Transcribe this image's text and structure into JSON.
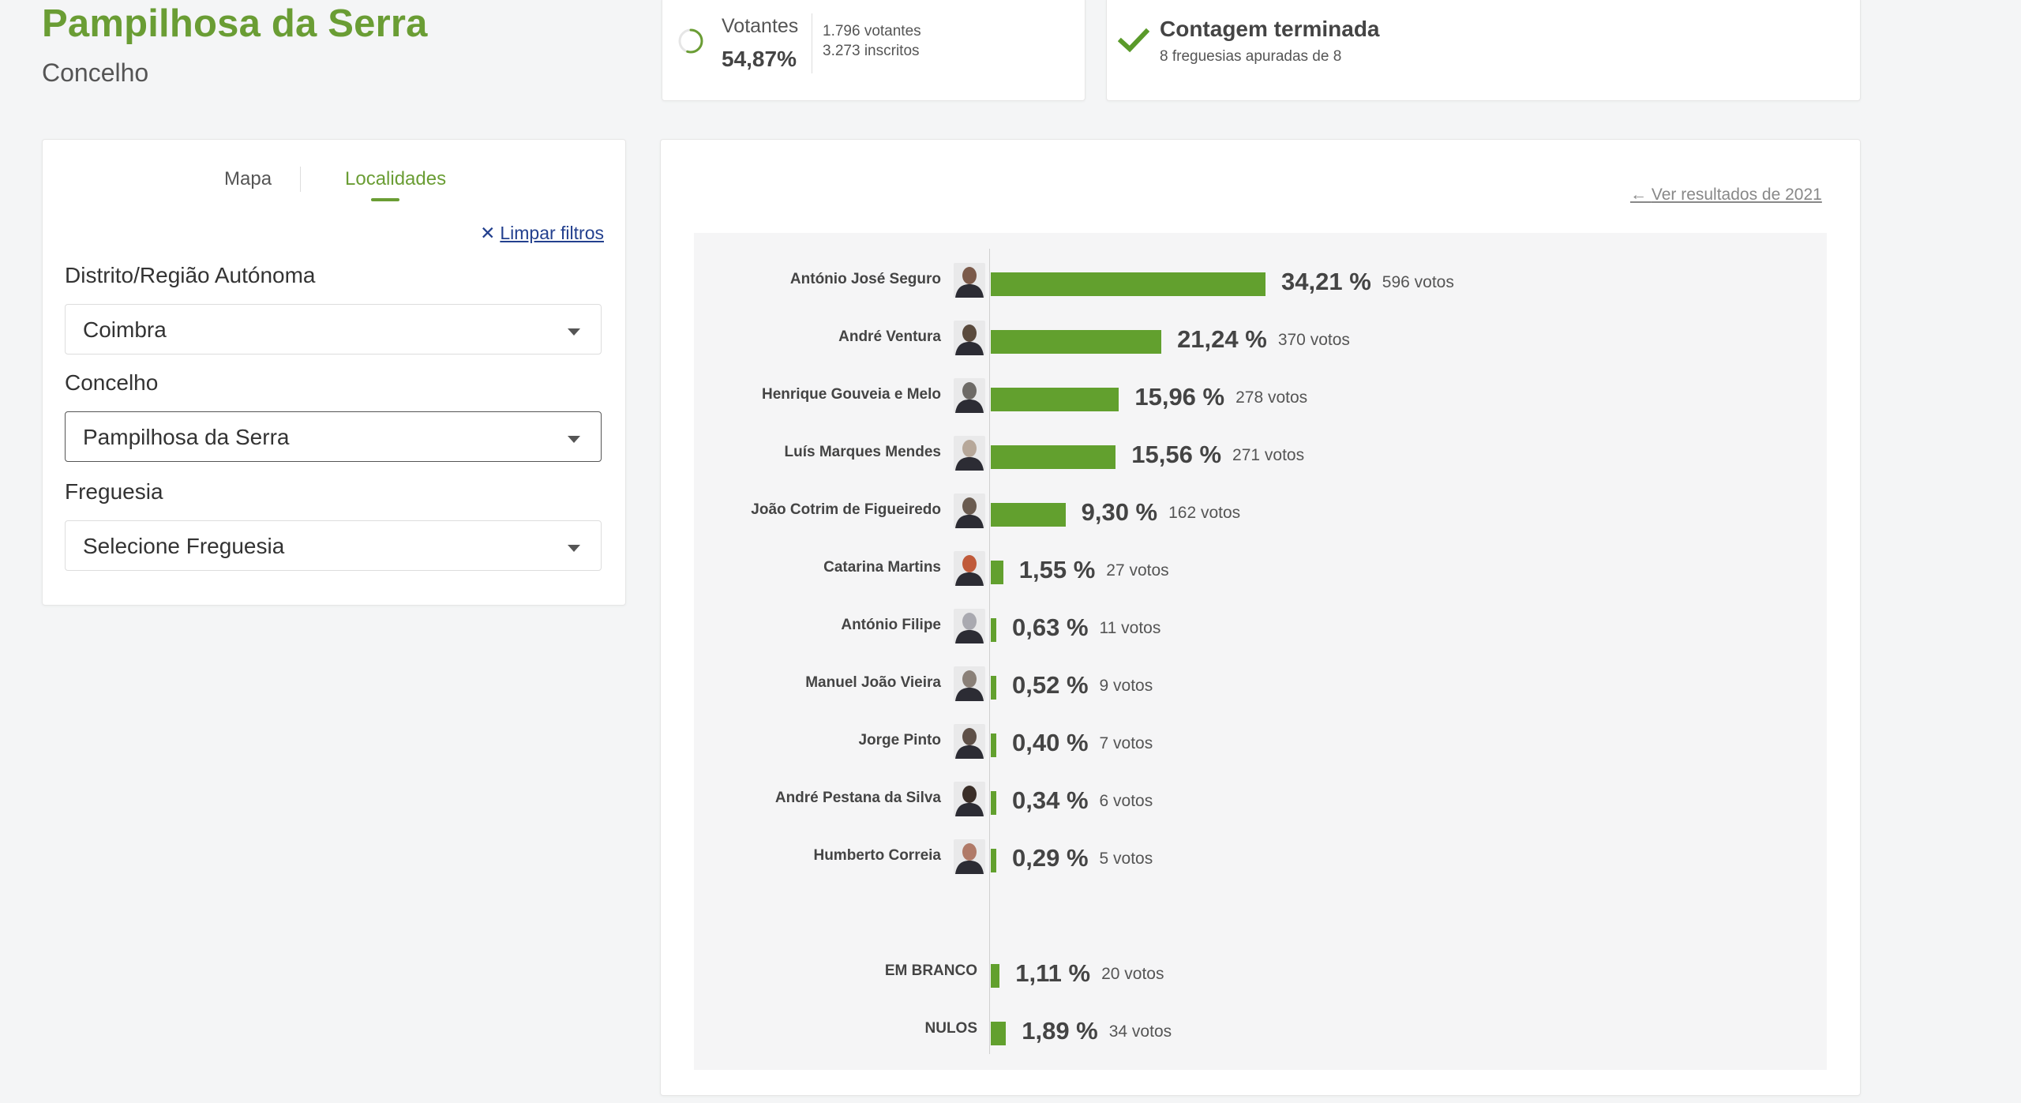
{
  "header": {
    "title": "Pampilhosa da Serra",
    "subtitle": "Concelho"
  },
  "turnout": {
    "label": "Votantes",
    "percent": "54,87%",
    "voters": "1.796 votantes",
    "registered": "3.273 inscritos",
    "fraction": 0.5487
  },
  "count": {
    "title": "Contagem terminada",
    "subtitle": "8 freguesias apuradas de 8",
    "check_icon": "check-icon",
    "color": "#5a9a2a"
  },
  "filters": {
    "tabs": [
      {
        "label": "Mapa"
      },
      {
        "label": "Localidades"
      }
    ],
    "clear_label": "Limpar filtros",
    "district_label": "Distrito/Região Autónoma",
    "district_value": "Coimbra",
    "municipality_label": "Concelho",
    "municipality_value": "Pampilhosa da Serra",
    "parish_label": "Freguesia",
    "parish_value": "Selecione Freguesia"
  },
  "results": {
    "back_link": "Ver resultados de 2021",
    "accent": "#62a02e"
  },
  "chart_data": {
    "type": "bar",
    "orientation": "horizontal",
    "categories": [
      "António José Seguro",
      "André Ventura",
      "Henrique Gouveia e Melo",
      "Luís Marques Mendes",
      "João Cotrim de Figueiredo",
      "Catarina Martins",
      "António Filipe",
      "Manuel João Vieira",
      "Jorge Pinto",
      "André Pestana da Silva",
      "Humberto Correia",
      "EM BRANCO",
      "NULOS"
    ],
    "values": [
      34.21,
      21.24,
      15.96,
      15.56,
      9.3,
      1.55,
      0.63,
      0.52,
      0.4,
      0.34,
      0.29,
      1.11,
      1.89
    ],
    "labels": [
      "34,21 %",
      "21,24 %",
      "15,96 %",
      "15,56 %",
      "9,30 %",
      "1,55 %",
      "0,63 %",
      "0,52 %",
      "0,40 %",
      "0,34 %",
      "0,29 %",
      "1,11 %",
      "1,89 %"
    ],
    "votes": [
      "596 votos",
      "370 votos",
      "278 votos",
      "271 votos",
      "162 votos",
      "27 votos",
      "11 votos",
      "9 votos",
      "7 votos",
      "6 votos",
      "5 votos",
      "20 votos",
      "34 votos"
    ],
    "special": [
      false,
      false,
      false,
      false,
      false,
      false,
      false,
      false,
      false,
      false,
      false,
      true,
      true
    ],
    "photo_colors": [
      "#7b5a4a",
      "#5a4a3d",
      "#6d6a66",
      "#b7a89a",
      "#6a5b50",
      "#c05a3a",
      "#a9a9b0",
      "#8a8078",
      "#5e5048",
      "#3a2e28",
      "#b07a68"
    ]
  }
}
